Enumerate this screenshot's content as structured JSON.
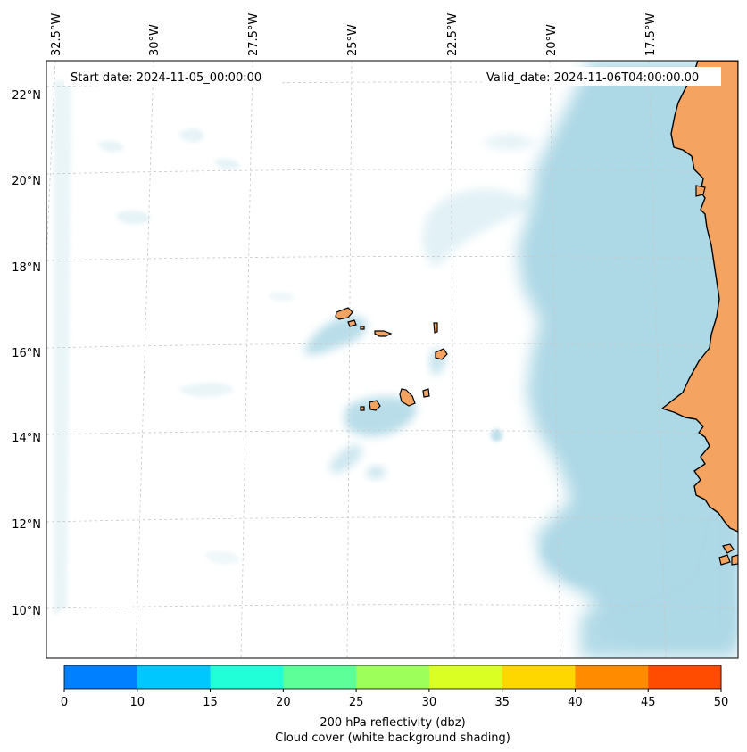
{
  "map": {
    "start_date_label": "Start date: 2024-11-05_00:00:00",
    "valid_date_label": "Valid_date: 2024-11-06T04:00:00.00",
    "lon_labels": [
      "32.5°W",
      "30°W",
      "27.5°W",
      "25°W",
      "22.5°W",
      "20°W",
      "17.5°W"
    ],
    "lat_labels": [
      "22°N",
      "20°N",
      "18°N",
      "16°N",
      "14°N",
      "12°N",
      "10°N"
    ],
    "grid": true,
    "colors": {
      "land": "#f4a460",
      "cloud": "#add8e6",
      "background": "#ffffff",
      "coast": "#000000",
      "grid": "#c8c8c8"
    },
    "islands": [
      "Santo Antão",
      "São Vicente",
      "Santa Luzia",
      "São Nicolau",
      "Sal",
      "Boa Vista",
      "Brava",
      "Fogo",
      "Santiago",
      "Maio"
    ]
  },
  "colorbar": {
    "ticks": [
      "0",
      "10",
      "15",
      "20",
      "25",
      "30",
      "35",
      "40",
      "45",
      "50"
    ],
    "colors": [
      "#0080ff",
      "#00c8ff",
      "#21ffd8",
      "#5dff98",
      "#9dff5a",
      "#daff22",
      "#ffd700",
      "#ff8c00",
      "#ff4c00"
    ],
    "label_line1": "200 hPa reflectivity (dbz)",
    "label_line2": "Cloud cover (white background shading)"
  }
}
